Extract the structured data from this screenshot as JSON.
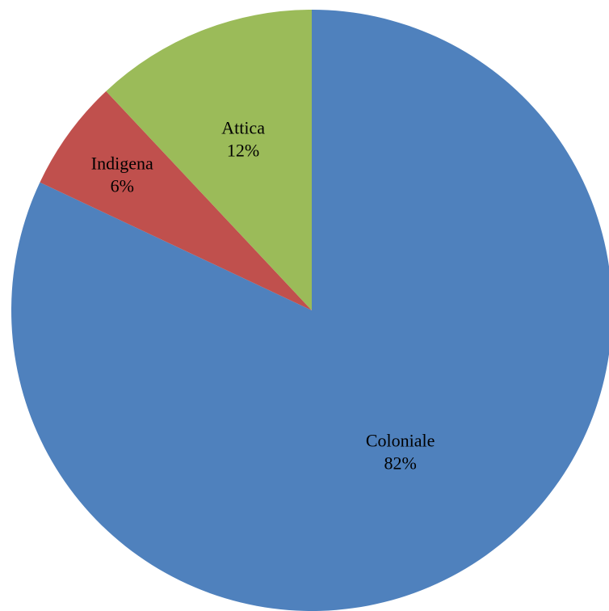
{
  "chart_data": {
    "type": "pie",
    "title": "",
    "start_angle_deg": 0,
    "direction": "clockwise",
    "slices": [
      {
        "label": "Coloniale",
        "value": 82,
        "value_label": "82%",
        "color": "#4F81BD"
      },
      {
        "label": "Indigena",
        "value": 6,
        "value_label": "6%",
        "color": "#C0504D"
      },
      {
        "label": "Attica",
        "value": 12,
        "value_label": "12%",
        "color": "#9BBB59"
      }
    ]
  }
}
